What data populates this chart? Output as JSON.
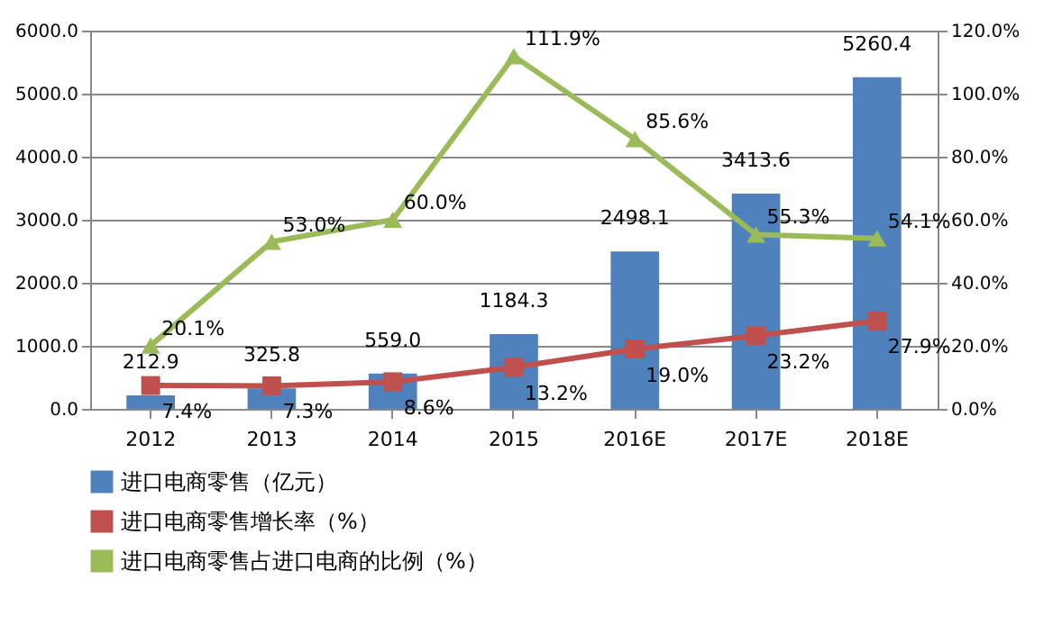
{
  "chart_data": {
    "type": "bar",
    "categories": [
      "2012",
      "2013",
      "2014",
      "2015",
      "2016E",
      "2017E",
      "2018E"
    ],
    "ylim": [
      0,
      6000
    ],
    "yticks": [
      {
        "value": 0,
        "label": "0.0"
      },
      {
        "value": 1000,
        "label": "1000.0"
      },
      {
        "value": 2000,
        "label": "2000.0"
      },
      {
        "value": 3000,
        "label": "3000.0"
      },
      {
        "value": 4000,
        "label": "4000.0"
      },
      {
        "value": 5000,
        "label": "5000.0"
      },
      {
        "value": 6000,
        "label": "6000.0"
      }
    ],
    "y2lim": [
      0,
      120
    ],
    "y2ticks": [
      {
        "value": 0,
        "label": "0.0%"
      },
      {
        "value": 20,
        "label": "20.0%"
      },
      {
        "value": 40,
        "label": "40.0%"
      },
      {
        "value": 60,
        "label": "60.0%"
      },
      {
        "value": 80,
        "label": "80.0%"
      },
      {
        "value": 100,
        "label": "100.0%"
      },
      {
        "value": 120,
        "label": "120.0%"
      }
    ],
    "grid": "y",
    "legend": "bottom",
    "series": [
      {
        "name": "进口电商零售（亿元）",
        "color": "#4f81bd",
        "values": [
          212.9,
          325.8,
          559.0,
          1184.3,
          2498.1,
          3413.6,
          5260.4
        ],
        "value_labels": [
          "212.9",
          "325.8",
          "559.0",
          "1184.3",
          "2498.1",
          "3413.6",
          "5260.4"
        ]
      },
      {
        "name": "进口电商零售增长率（%）",
        "type": "line",
        "axis": "y2",
        "marker": "square",
        "color": "#c0504d",
        "values": [
          7.4,
          7.3,
          8.6,
          13.2,
          19.0,
          23.2,
          27.9
        ],
        "value_labels": [
          "7.4%",
          "7.3%",
          "8.6%",
          "13.2%",
          "19.0%",
          "23.2%",
          "27.9%"
        ]
      },
      {
        "name": "进口电商零售占进口电商的比例（%）",
        "type": "line",
        "axis": "y2",
        "marker": "triangle",
        "color": "#9bbb59",
        "values": [
          20.1,
          53.0,
          60.0,
          111.9,
          85.6,
          55.3,
          54.1
        ],
        "value_labels": [
          "20.1%",
          "53.0%",
          "60.0%",
          "111.9%",
          "85.6%",
          "55.3%",
          "54.1%"
        ]
      }
    ]
  }
}
